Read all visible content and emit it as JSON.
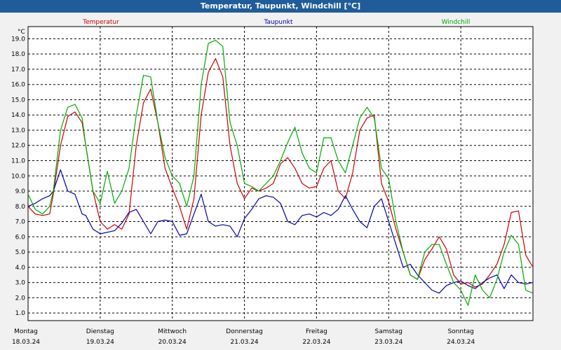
{
  "window": {
    "title": "Temperatur, Taupunkt, Windchill [°C]"
  },
  "chart_data": {
    "type": "line",
    "title": "Temperatur, Taupunkt, Windchill [°C]",
    "ylabel": "°C",
    "ylim": [
      0.5,
      19.8
    ],
    "xlim": [
      0,
      7
    ],
    "grid": true,
    "yticks": [
      "1.0",
      "2.0",
      "3.0",
      "4.0",
      "5.0",
      "6.0",
      "7.0",
      "8.0",
      "9.0",
      "10.0",
      "11.0",
      "12.0",
      "13.0",
      "14.0",
      "15.0",
      "16.0",
      "17.0",
      "18.0",
      "19.0"
    ],
    "day_labels": [
      {
        "day": "Montag",
        "date": "18.03.24"
      },
      {
        "day": "Dienstag",
        "date": "19.03.24"
      },
      {
        "day": "Mittwoch",
        "date": "20.03.24"
      },
      {
        "day": "Donnerstag",
        "date": "21.03.24"
      },
      {
        "day": "Freitag",
        "date": "22.03.24"
      },
      {
        "day": "Samstag",
        "date": "23.03.24"
      },
      {
        "day": "Sonntag",
        "date": "24.03.24"
      }
    ],
    "series": [
      {
        "name": "Temperatur",
        "color": "#cc0000",
        "x": [
          0,
          0.1,
          0.2,
          0.3,
          0.35,
          0.45,
          0.55,
          0.65,
          0.75,
          0.8,
          0.9,
          1.0,
          1.1,
          1.2,
          1.3,
          1.4,
          1.5,
          1.6,
          1.7,
          1.8,
          1.9,
          2.0,
          2.1,
          2.2,
          2.3,
          2.4,
          2.5,
          2.6,
          2.7,
          2.8,
          2.9,
          3.0,
          3.1,
          3.2,
          3.3,
          3.4,
          3.5,
          3.6,
          3.7,
          3.8,
          3.9,
          4.0,
          4.1,
          4.2,
          4.3,
          4.4,
          4.5,
          4.6,
          4.7,
          4.8,
          4.9,
          5.0,
          5.1,
          5.2,
          5.3,
          5.4,
          5.5,
          5.6,
          5.7,
          5.8,
          5.9,
          6.0,
          6.1,
          6.2,
          6.3,
          6.4,
          6.5,
          6.6,
          6.7,
          6.8,
          6.9,
          7.0
        ],
        "values": [
          8.0,
          7.5,
          7.4,
          7.5,
          8.8,
          12.0,
          13.9,
          14.2,
          13.5,
          12.0,
          9.0,
          7.0,
          6.5,
          6.8,
          6.5,
          7.5,
          12.0,
          14.8,
          15.7,
          13.5,
          10.5,
          9.2,
          8.0,
          6.5,
          8.5,
          14.0,
          16.8,
          17.7,
          16.5,
          12.0,
          9.5,
          8.5,
          9.2,
          9.0,
          9.2,
          9.5,
          10.8,
          11.2,
          10.5,
          9.5,
          9.2,
          9.3,
          10.5,
          11.0,
          9.0,
          8.5,
          10.2,
          13.0,
          13.8,
          14.0,
          9.5,
          8.3,
          6.5,
          5.0,
          3.5,
          3.2,
          4.5,
          5.2,
          6.0,
          5.2,
          3.5,
          2.9,
          3.0,
          2.7,
          2.9,
          3.5,
          4.2,
          5.5,
          7.6,
          7.7,
          4.8,
          4.0
        ]
      },
      {
        "name": "Taupunkt",
        "color": "#0000aa",
        "x": [
          0,
          0.1,
          0.2,
          0.3,
          0.35,
          0.45,
          0.55,
          0.65,
          0.75,
          0.8,
          0.9,
          1.0,
          1.1,
          1.2,
          1.3,
          1.4,
          1.5,
          1.6,
          1.7,
          1.8,
          1.9,
          2.0,
          2.1,
          2.2,
          2.3,
          2.4,
          2.5,
          2.6,
          2.7,
          2.8,
          2.9,
          3.0,
          3.1,
          3.2,
          3.3,
          3.4,
          3.5,
          3.6,
          3.7,
          3.8,
          3.9,
          4.0,
          4.1,
          4.2,
          4.3,
          4.4,
          4.5,
          4.6,
          4.7,
          4.8,
          4.9,
          5.0,
          5.1,
          5.2,
          5.3,
          5.4,
          5.5,
          5.6,
          5.7,
          5.8,
          5.9,
          6.0,
          6.1,
          6.2,
          6.3,
          6.4,
          6.5,
          6.6,
          6.7,
          6.8,
          6.9,
          7.0
        ],
        "values": [
          8.0,
          8.2,
          8.5,
          8.7,
          9.0,
          10.4,
          9.0,
          8.8,
          7.5,
          7.4,
          6.5,
          6.2,
          6.3,
          6.4,
          6.9,
          7.6,
          7.8,
          7.0,
          6.2,
          7.0,
          7.1,
          7.0,
          6.1,
          6.2,
          7.5,
          8.8,
          7.0,
          6.7,
          6.8,
          6.7,
          6.0,
          7.2,
          7.8,
          8.5,
          8.7,
          8.6,
          8.2,
          7.0,
          6.8,
          7.4,
          7.5,
          7.3,
          7.6,
          7.4,
          7.8,
          8.7,
          7.8,
          7.0,
          6.6,
          8.0,
          8.5,
          7.0,
          5.5,
          4.0,
          4.2,
          3.5,
          3.0,
          2.5,
          2.3,
          2.8,
          3.0,
          3.1,
          2.8,
          2.6,
          3.0,
          3.3,
          3.5,
          2.6,
          3.5,
          3.0,
          2.9,
          3.0
        ]
      },
      {
        "name": "Windchill",
        "color": "#00aa00",
        "x": [
          0,
          0.1,
          0.2,
          0.3,
          0.35,
          0.45,
          0.55,
          0.65,
          0.75,
          0.8,
          0.9,
          1.0,
          1.1,
          1.2,
          1.3,
          1.4,
          1.5,
          1.6,
          1.7,
          1.8,
          1.9,
          2.0,
          2.1,
          2.2,
          2.3,
          2.4,
          2.5,
          2.6,
          2.7,
          2.8,
          2.9,
          3.0,
          3.1,
          3.2,
          3.3,
          3.4,
          3.5,
          3.6,
          3.7,
          3.8,
          3.9,
          4.0,
          4.1,
          4.2,
          4.3,
          4.4,
          4.5,
          4.6,
          4.7,
          4.8,
          4.9,
          5.0,
          5.1,
          5.2,
          5.3,
          5.4,
          5.5,
          5.6,
          5.7,
          5.8,
          5.9,
          6.0,
          6.1,
          6.2,
          6.3,
          6.4,
          6.5,
          6.6,
          6.7,
          6.8,
          6.9,
          7.0
        ],
        "values": [
          8.8,
          7.8,
          7.5,
          8.0,
          9.0,
          13.0,
          14.5,
          14.7,
          13.8,
          12.0,
          9.0,
          8.2,
          10.3,
          8.2,
          9.0,
          10.5,
          14.0,
          16.6,
          16.5,
          13.5,
          11.2,
          10.0,
          9.5,
          8.0,
          10.0,
          16.0,
          18.7,
          18.9,
          18.5,
          13.5,
          12.0,
          9.5,
          9.3,
          9.0,
          9.5,
          10.0,
          11.0,
          12.2,
          13.2,
          11.5,
          10.5,
          10.2,
          12.5,
          12.5,
          11.0,
          10.2,
          12.0,
          13.8,
          14.5,
          13.8,
          10.5,
          9.8,
          7.0,
          5.0,
          3.5,
          3.2,
          5.0,
          5.5,
          5.5,
          4.2,
          3.0,
          2.5,
          1.5,
          3.5,
          2.5,
          2.0,
          3.2,
          5.0,
          6.1,
          5.5,
          2.5,
          2.3
        ]
      }
    ]
  }
}
